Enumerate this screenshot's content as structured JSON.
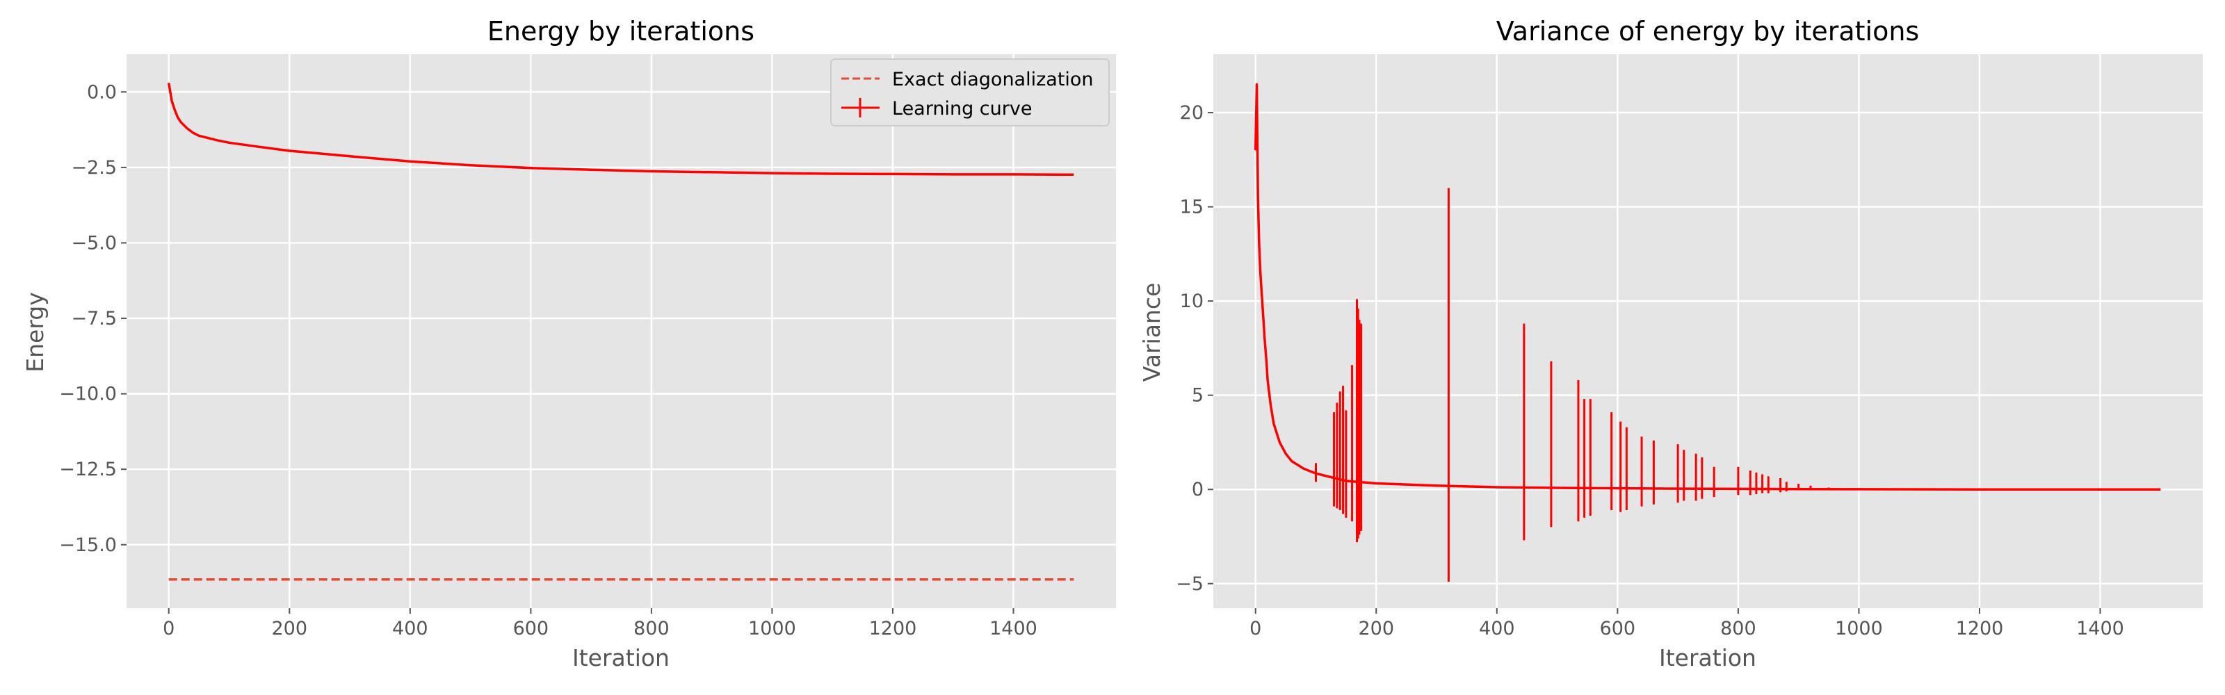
{
  "chart_data": [
    {
      "type": "line",
      "title": "Energy by iterations",
      "xlabel": "Iteration",
      "ylabel": "Energy",
      "xlim": [
        -70,
        1570
      ],
      "ylim": [
        -17.1,
        1.25
      ],
      "xticks": [
        0,
        200,
        400,
        600,
        800,
        1000,
        1200,
        1400
      ],
      "yticks": [
        0.0,
        -2.5,
        -5.0,
        -7.5,
        -10.0,
        -12.5,
        -15.0
      ],
      "ytick_labels": [
        "0.0",
        "−2.5",
        "−5.0",
        "−7.5",
        "−10.0",
        "−12.5",
        "−15.0"
      ],
      "grid": true,
      "legend": "top-right",
      "series": [
        {
          "name": "Exact diagonalization",
          "style": "dashed",
          "color": "#e24a33",
          "x": [
            0,
            1500
          ],
          "y": [
            -16.15,
            -16.15
          ]
        },
        {
          "name": "Learning curve",
          "style": "solid-errorbar",
          "color": "#ff0000",
          "x": [
            0,
            2,
            5,
            10,
            15,
            20,
            30,
            40,
            50,
            60,
            80,
            100,
            150,
            200,
            300,
            400,
            500,
            600,
            700,
            800,
            900,
            1000,
            1100,
            1200,
            1300,
            1400,
            1500
          ],
          "y": [
            0.3,
            0.05,
            -0.3,
            -0.6,
            -0.85,
            -1.0,
            -1.2,
            -1.35,
            -1.45,
            -1.5,
            -1.6,
            -1.68,
            -1.82,
            -1.95,
            -2.13,
            -2.3,
            -2.43,
            -2.52,
            -2.58,
            -2.63,
            -2.66,
            -2.69,
            -2.71,
            -2.72,
            -2.73,
            -2.73,
            -2.74
          ]
        }
      ]
    },
    {
      "type": "line",
      "title": "Variance of energy by iterations",
      "xlabel": "Iteration",
      "ylabel": "Variance",
      "xlim": [
        -70,
        1570
      ],
      "ylim": [
        -6.3,
        23.1
      ],
      "xticks": [
        0,
        200,
        400,
        600,
        800,
        1000,
        1200,
        1400
      ],
      "yticks": [
        -5,
        0,
        5,
        10,
        15,
        20
      ],
      "ytick_labels": [
        "−5",
        "0",
        "5",
        "10",
        "15",
        "20"
      ],
      "grid": true,
      "series": [
        {
          "color": "#ff0000",
          "style": "solid-errorbar",
          "x": [
            0,
            2,
            4,
            6,
            8,
            10,
            12,
            15,
            18,
            20,
            25,
            30,
            40,
            50,
            60,
            80,
            100,
            150,
            200,
            300,
            400,
            500,
            600,
            700,
            800,
            900,
            1000,
            1200,
            1500
          ],
          "y": [
            18.0,
            21.5,
            15.5,
            13.0,
            11.5,
            10.5,
            9.5,
            8.0,
            6.8,
            5.8,
            4.5,
            3.5,
            2.5,
            1.9,
            1.5,
            1.1,
            0.85,
            0.45,
            0.32,
            0.2,
            0.12,
            0.08,
            0.06,
            0.04,
            0.03,
            0.02,
            0.01,
            0.0,
            0.0
          ]
        }
      ],
      "error_spikes": [
        {
          "x": 100,
          "low": 0.4,
          "high": 1.4
        },
        {
          "x": 130,
          "low": -0.9,
          "high": 4.1
        },
        {
          "x": 135,
          "low": -1.0,
          "high": 4.6
        },
        {
          "x": 140,
          "low": -1.1,
          "high": 5.2
        },
        {
          "x": 145,
          "low": -1.3,
          "high": 5.5
        },
        {
          "x": 150,
          "low": -1.5,
          "high": 4.2
        },
        {
          "x": 160,
          "low": -1.7,
          "high": 6.6
        },
        {
          "x": 168,
          "low": -2.8,
          "high": 10.1
        },
        {
          "x": 170,
          "low": -2.6,
          "high": 9.6
        },
        {
          "x": 172,
          "low": -2.4,
          "high": 9.0
        },
        {
          "x": 175,
          "low": -2.2,
          "high": 8.8
        },
        {
          "x": 320,
          "low": -4.9,
          "high": 16.0
        },
        {
          "x": 445,
          "low": -2.7,
          "high": 8.8
        },
        {
          "x": 490,
          "low": -2.0,
          "high": 6.8
        },
        {
          "x": 535,
          "low": -1.7,
          "high": 5.8
        },
        {
          "x": 545,
          "low": -1.5,
          "high": 4.8
        },
        {
          "x": 555,
          "low": -1.4,
          "high": 4.8
        },
        {
          "x": 590,
          "low": -1.1,
          "high": 4.1
        },
        {
          "x": 605,
          "low": -1.2,
          "high": 3.6
        },
        {
          "x": 615,
          "low": -1.1,
          "high": 3.3
        },
        {
          "x": 640,
          "low": -0.9,
          "high": 2.8
        },
        {
          "x": 660,
          "low": -0.8,
          "high": 2.6
        },
        {
          "x": 700,
          "low": -0.7,
          "high": 2.4
        },
        {
          "x": 710,
          "low": -0.6,
          "high": 2.1
        },
        {
          "x": 730,
          "low": -0.6,
          "high": 1.9
        },
        {
          "x": 740,
          "low": -0.5,
          "high": 1.7
        },
        {
          "x": 760,
          "low": -0.4,
          "high": 1.2
        },
        {
          "x": 800,
          "low": -0.3,
          "high": 1.2
        },
        {
          "x": 820,
          "low": -0.3,
          "high": 1.0
        },
        {
          "x": 830,
          "low": -0.25,
          "high": 0.9
        },
        {
          "x": 840,
          "low": -0.2,
          "high": 0.8
        },
        {
          "x": 850,
          "low": -0.2,
          "high": 0.7
        },
        {
          "x": 870,
          "low": -0.15,
          "high": 0.6
        },
        {
          "x": 880,
          "low": -0.1,
          "high": 0.4
        },
        {
          "x": 900,
          "low": -0.05,
          "high": 0.3
        },
        {
          "x": 920,
          "low": -0.05,
          "high": 0.2
        },
        {
          "x": 950,
          "low": 0.0,
          "high": 0.1
        }
      ]
    }
  ]
}
